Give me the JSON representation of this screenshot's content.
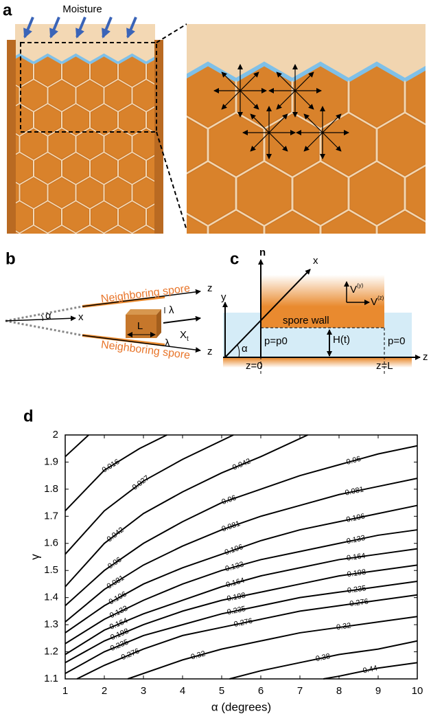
{
  "panels": {
    "a": {
      "label": "a",
      "moisture": "Moisture"
    },
    "b": {
      "label": "b",
      "neighbor_top": "Neighboring spore",
      "neighbor_bottom": "Neighboring spore",
      "z_top": "z",
      "z_bottom": "z",
      "x": "x",
      "alpha": "α",
      "L": "L",
      "lambda_top": "λ",
      "lambda_bottom": "λ",
      "X": "X",
      "X_sub": "t"
    },
    "c": {
      "label": "c",
      "n": "n",
      "x": "x",
      "y": "y",
      "V": "V",
      "V_y": "(y)",
      "V2": "V",
      "V_z": "(z)",
      "spore_wall": "spore wall",
      "p_left": "p=p0",
      "H": "H(t)",
      "p_right": "p=0",
      "z0": "z=0",
      "zL": "z=L",
      "z": "z",
      "alpha": "α"
    },
    "d": {
      "label": "d"
    }
  },
  "chart_data": {
    "type": "contour",
    "xlabel": "α (degrees)",
    "ylabel": "γ",
    "xlim": [
      1,
      10
    ],
    "ylim": [
      1.1,
      2
    ],
    "xticks": [
      1,
      2,
      3,
      4,
      5,
      6,
      7,
      8,
      9,
      10
    ],
    "yticks": [
      1.1,
      1.2,
      1.3,
      1.4,
      1.5,
      1.6,
      1.7,
      1.8,
      1.9,
      2
    ],
    "color": "#000000",
    "contours": [
      {
        "x": [
          1,
          1.6
        ],
        "y": [
          1.92,
          2
        ]
      },
      {
        "level": 0.016,
        "x": [
          1,
          2,
          2.9,
          3.6
        ],
        "y": [
          1.72,
          1.87,
          1.95,
          2
        ]
      },
      {
        "level": 0.027,
        "x": [
          1,
          2,
          3,
          4,
          5.3
        ],
        "y": [
          1.56,
          1.72,
          1.83,
          1.91,
          2
        ]
      },
      {
        "level": 0.042,
        "x": [
          1,
          2,
          3,
          4,
          5,
          6,
          7.2
        ],
        "y": [
          1.44,
          1.6,
          1.71,
          1.79,
          1.86,
          1.92,
          2
        ]
      },
      {
        "level": 0.06,
        "x": [
          1,
          2,
          3,
          4,
          5,
          6,
          7,
          8,
          9,
          10
        ],
        "y": [
          1.37,
          1.5,
          1.6,
          1.68,
          1.75,
          1.8,
          1.85,
          1.89,
          1.93,
          1.96
        ]
      },
      {
        "level": 0.081,
        "x": [
          1,
          2,
          3,
          4,
          5,
          6,
          7,
          8,
          9,
          10
        ],
        "y": [
          1.31,
          1.43,
          1.52,
          1.59,
          1.65,
          1.7,
          1.74,
          1.78,
          1.81,
          1.84
        ]
      },
      {
        "level": 0.106,
        "x": [
          1,
          2,
          3,
          4,
          5,
          6,
          7,
          8,
          9,
          10
        ],
        "y": [
          1.27,
          1.37,
          1.45,
          1.51,
          1.56,
          1.61,
          1.65,
          1.68,
          1.71,
          1.74
        ]
      },
      {
        "level": 0.133,
        "x": [
          1,
          2,
          3,
          4,
          5,
          6,
          7,
          8,
          9,
          10
        ],
        "y": [
          1.23,
          1.32,
          1.39,
          1.45,
          1.5,
          1.54,
          1.57,
          1.6,
          1.63,
          1.65
        ]
      },
      {
        "level": 0.164,
        "x": [
          1,
          2,
          3,
          4,
          5,
          6,
          7,
          8,
          9,
          10
        ],
        "y": [
          1.19,
          1.28,
          1.34,
          1.39,
          1.44,
          1.48,
          1.51,
          1.54,
          1.56,
          1.58
        ]
      },
      {
        "level": 0.198,
        "x": [
          1,
          2,
          3,
          4,
          5,
          6,
          7,
          8,
          9,
          10
        ],
        "y": [
          1.16,
          1.24,
          1.3,
          1.35,
          1.39,
          1.42,
          1.45,
          1.48,
          1.5,
          1.52
        ]
      },
      {
        "level": 0.235,
        "x": [
          1,
          2,
          3,
          4,
          5,
          6,
          7,
          8,
          9,
          10
        ],
        "y": [
          1.12,
          1.2,
          1.26,
          1.3,
          1.34,
          1.37,
          1.4,
          1.42,
          1.44,
          1.46
        ]
      },
      {
        "level": 0.276,
        "x": [
          1.3,
          2,
          3,
          4,
          5,
          6,
          7,
          8,
          9,
          10
        ],
        "y": [
          1.1,
          1.15,
          1.21,
          1.26,
          1.29,
          1.32,
          1.35,
          1.37,
          1.39,
          1.41
        ]
      },
      {
        "level": 0.32,
        "x": [
          2.6,
          4,
          5,
          6,
          7,
          8,
          9,
          10
        ],
        "y": [
          1.1,
          1.17,
          1.21,
          1.24,
          1.27,
          1.29,
          1.31,
          1.33
        ]
      },
      {
        "level": 0.38,
        "x": [
          5.2,
          6,
          7,
          8,
          9,
          10
        ],
        "y": [
          1.1,
          1.13,
          1.16,
          1.19,
          1.21,
          1.24
        ]
      },
      {
        "level": 0.44,
        "x": [
          7.6,
          8,
          9,
          10
        ],
        "y": [
          1.1,
          1.11,
          1.14,
          1.16
        ]
      }
    ]
  }
}
